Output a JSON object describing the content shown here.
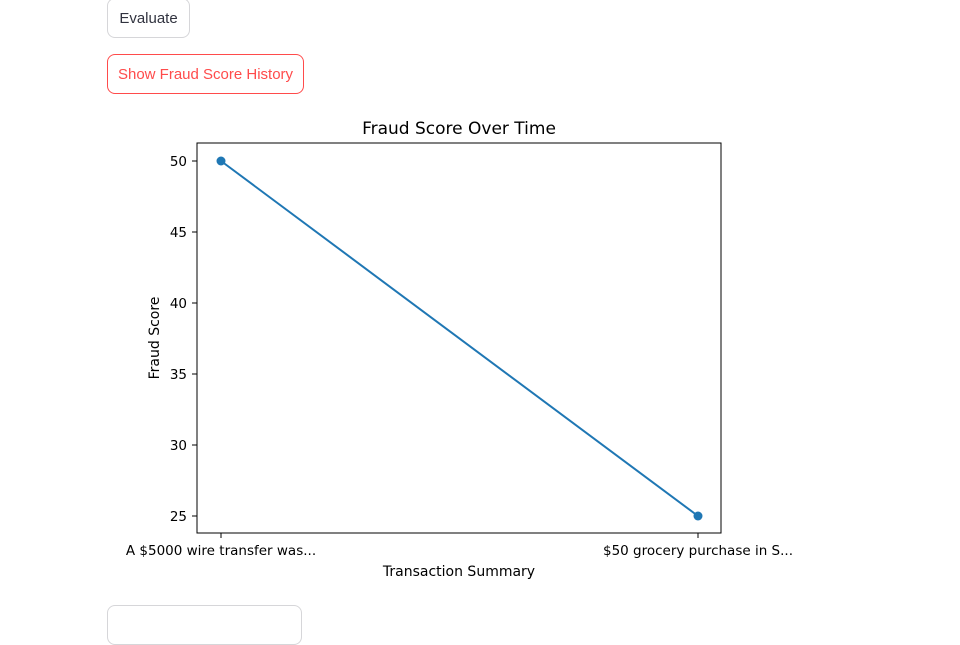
{
  "buttons": {
    "evaluate_label": "Evaluate",
    "history_label": "Show Fraud Score History"
  },
  "colors": {
    "accent": "#ff4b4b",
    "line": "#1f77b4"
  },
  "chart_data": {
    "type": "line",
    "title": "Fraud Score Over Time",
    "xlabel": "Transaction Summary",
    "ylabel": "Fraud Score",
    "categories": [
      "A $5000 wire transfer was...",
      "$50 grocery purchase in S..."
    ],
    "values": [
      50,
      25
    ],
    "markers": true,
    "ylim": [
      25,
      50
    ],
    "yticks": [
      25,
      30,
      35,
      40,
      45,
      50
    ],
    "grid": false
  }
}
